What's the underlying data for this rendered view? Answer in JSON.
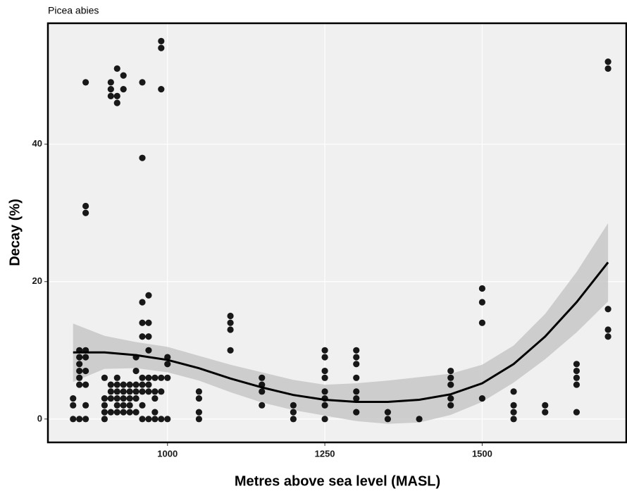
{
  "chart_data": {
    "type": "scatter",
    "title": "Picea abies",
    "xlabel": "Metres above sea level (MASL)",
    "ylabel": "Decay (%)",
    "x": [
      850,
      850,
      850,
      860,
      860,
      860,
      860,
      860,
      860,
      860,
      870,
      870,
      870,
      870,
      870,
      870,
      870,
      870,
      870,
      900,
      900,
      900,
      900,
      900,
      910,
      910,
      910,
      910,
      910,
      910,
      910,
      920,
      920,
      920,
      920,
      920,
      920,
      920,
      920,
      920,
      930,
      930,
      930,
      930,
      930,
      930,
      930,
      940,
      940,
      940,
      940,
      940,
      950,
      950,
      950,
      950,
      950,
      950,
      960,
      960,
      960,
      960,
      960,
      960,
      960,
      960,
      960,
      960,
      970,
      970,
      970,
      970,
      970,
      970,
      970,
      970,
      980,
      980,
      980,
      980,
      980,
      990,
      990,
      990,
      990,
      990,
      990,
      1000,
      1000,
      1000,
      1000,
      1050,
      1050,
      1050,
      1050,
      1100,
      1100,
      1100,
      1100,
      1150,
      1150,
      1150,
      1150,
      1200,
      1200,
      1200,
      1250,
      1250,
      1250,
      1250,
      1250,
      1250,
      1250,
      1250,
      1300,
      1300,
      1300,
      1300,
      1300,
      1300,
      1300,
      1350,
      1350,
      1400,
      1450,
      1450,
      1450,
      1450,
      1450,
      1500,
      1500,
      1500,
      1500,
      1550,
      1550,
      1550,
      1550,
      1600,
      1600,
      1650,
      1650,
      1650,
      1650,
      1650,
      1700,
      1700,
      1700,
      1700,
      1700
    ],
    "values": [
      0,
      2,
      3,
      0,
      5,
      6,
      7,
      8,
      9,
      10,
      49,
      31,
      30,
      10,
      9,
      7,
      5,
      2,
      0,
      0,
      1,
      2,
      3,
      6,
      49,
      48,
      47,
      1,
      3,
      4,
      5,
      51,
      47,
      46,
      1,
      2,
      3,
      4,
      5,
      6,
      50,
      48,
      1,
      2,
      3,
      4,
      5,
      1,
      2,
      3,
      4,
      5,
      1,
      3,
      4,
      5,
      7,
      9,
      49,
      38,
      17,
      14,
      12,
      6,
      5,
      4,
      2,
      0,
      18,
      14,
      12,
      10,
      6,
      5,
      4,
      0,
      6,
      4,
      3,
      1,
      0,
      55,
      54,
      48,
      6,
      4,
      0,
      9,
      8,
      6,
      0,
      4,
      3,
      1,
      0,
      15,
      14,
      13,
      10,
      6,
      5,
      4,
      2,
      2,
      1,
      0,
      10,
      9,
      7,
      6,
      4,
      3,
      2,
      0,
      10,
      9,
      8,
      6,
      4,
      3,
      1,
      1,
      0,
      0,
      7,
      6,
      5,
      3,
      2,
      19,
      17,
      14,
      3,
      4,
      2,
      1,
      0,
      2,
      1,
      8,
      7,
      6,
      5,
      1,
      52,
      51,
      16,
      13,
      12
    ],
    "color": "#000000",
    "smooth": {
      "x": [
        850,
        900,
        950,
        1000,
        1050,
        1100,
        1150,
        1200,
        1250,
        1300,
        1350,
        1400,
        1450,
        1500,
        1550,
        1600,
        1650,
        1700
      ],
      "values": [
        9.7,
        9.7,
        9.3,
        8.6,
        7.4,
        5.9,
        4.6,
        3.5,
        2.8,
        2.5,
        2.5,
        2.8,
        3.6,
        5.2,
        8.0,
        12.0,
        17.0,
        22.8
      ],
      "lower": [
        5.4,
        7.3,
        7.4,
        6.8,
        5.6,
        3.9,
        2.4,
        1.3,
        0.5,
        -0.3,
        -0.7,
        -0.5,
        0.6,
        2.5,
        5.3,
        8.7,
        12.6,
        17.1
      ],
      "upper": [
        13.9,
        12.1,
        11.2,
        10.5,
        9.2,
        7.9,
        6.8,
        5.7,
        5.0,
        5.2,
        5.6,
        6.1,
        6.6,
        7.9,
        10.7,
        15.3,
        21.4,
        28.5
      ],
      "color": "#000000",
      "band_color": "#c4c4c4"
    },
    "xlim": [
      810,
      1729
    ],
    "ylim": [
      -3.4,
      57.6
    ],
    "xticks": [
      1000,
      1250,
      1500
    ],
    "yticks": [
      0,
      20,
      40
    ],
    "grid": true
  }
}
